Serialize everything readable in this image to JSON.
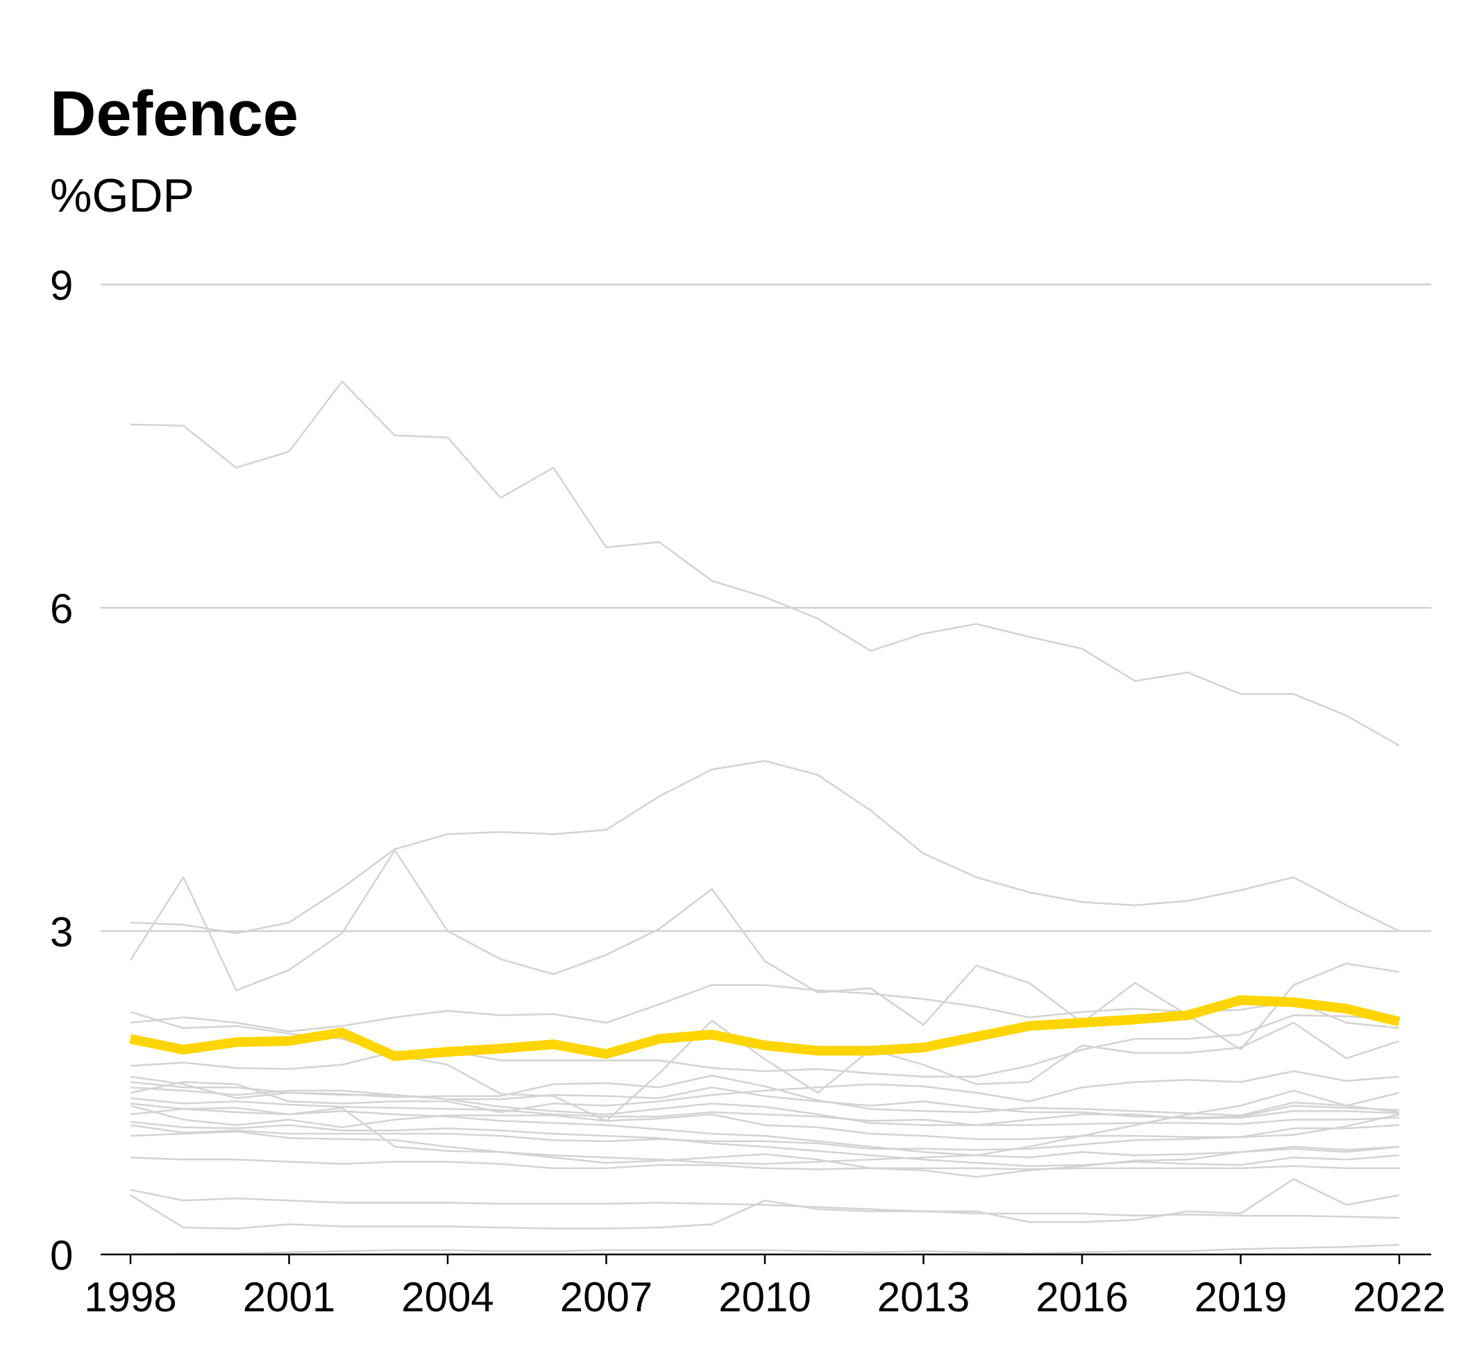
{
  "chart_data": {
    "type": "line",
    "title": "Defence",
    "ylabel": "%GDP",
    "xlabel": "",
    "ylim": [
      0,
      9
    ],
    "xlim": [
      1998,
      2022
    ],
    "yticks": [
      0,
      3,
      6,
      9
    ],
    "xticks": [
      1998,
      2001,
      2004,
      2007,
      2010,
      2013,
      2016,
      2019,
      2022
    ],
    "grid": true,
    "highlight_color": "#FFD500",
    "context_color": "#D3D3D3",
    "x": [
      1998,
      1999,
      2000,
      2001,
      2002,
      2003,
      2004,
      2005,
      2006,
      2007,
      2008,
      2009,
      2010,
      2011,
      2012,
      2013,
      2014,
      2015,
      2016,
      2017,
      2018,
      2019,
      2020,
      2021,
      2022
    ],
    "highlight": [
      2.0,
      1.9,
      1.97,
      1.98,
      2.06,
      1.84,
      1.88,
      1.91,
      1.95,
      1.86,
      2.0,
      2.04,
      1.94,
      1.89,
      1.89,
      1.92,
      2.02,
      2.12,
      2.15,
      2.18,
      2.22,
      2.36,
      2.34,
      2.28,
      2.16
    ],
    "series": [
      {
        "values": [
          7.7,
          7.69,
          7.3,
          7.45,
          8.1,
          7.6,
          7.58,
          7.02,
          7.3,
          6.56,
          6.61,
          6.25,
          6.1,
          5.9,
          5.6,
          5.76,
          5.85,
          5.73,
          5.62,
          5.32,
          5.4,
          5.2,
          5.2,
          5.0,
          4.72
        ]
      },
      {
        "values": [
          3.08,
          3.06,
          2.98,
          3.08,
          3.4,
          3.76,
          3.9,
          3.92,
          3.9,
          3.94,
          4.25,
          4.5,
          4.58,
          4.45,
          4.12,
          3.72,
          3.5,
          3.36,
          3.27,
          3.24,
          3.28,
          3.38,
          3.5,
          3.24,
          3.0
        ]
      },
      {
        "values": [
          2.73,
          3.5,
          2.45,
          2.64,
          2.98,
          3.75,
          3.0,
          2.74,
          2.6,
          2.78,
          3.02,
          3.39,
          2.72,
          2.43,
          2.47,
          2.13,
          2.68,
          2.52,
          2.15,
          2.52,
          2.22,
          1.9,
          2.5,
          2.7,
          2.62
        ]
      },
      {
        "values": [
          2.25,
          2.1,
          2.12,
          2.05,
          2.0,
          1.85,
          1.76,
          1.49,
          1.47,
          1.24,
          1.68,
          2.17,
          1.81,
          1.5,
          1.9,
          1.76,
          1.58,
          1.6,
          1.94,
          1.87,
          1.87,
          1.92,
          2.15,
          1.82,
          1.98
        ]
      },
      {
        "values": [
          2.15,
          2.2,
          2.15,
          2.07,
          2.12,
          2.2,
          2.26,
          2.22,
          2.23,
          2.15,
          2.32,
          2.5,
          2.5,
          2.45,
          2.42,
          2.37,
          2.3,
          2.2,
          2.25,
          2.28,
          2.25,
          2.27,
          2.35,
          2.15,
          2.1
        ]
      },
      {
        "values": [
          1.65,
          1.58,
          1.45,
          1.5,
          1.48,
          1.48,
          1.44,
          1.44,
          1.48,
          1.47,
          1.45,
          1.55,
          1.47,
          1.42,
          1.38,
          1.42,
          1.36,
          1.32,
          1.32,
          1.28,
          1.27,
          1.28,
          1.38,
          1.36,
          1.34
        ]
      },
      {
        "values": [
          1.55,
          1.52,
          1.48,
          1.52,
          1.52,
          1.48,
          1.44,
          1.37,
          1.33,
          1.3,
          1.35,
          1.4,
          1.37,
          1.3,
          1.22,
          1.2,
          1.2,
          1.25,
          1.3,
          1.3,
          1.26,
          1.27,
          1.33,
          1.33,
          1.31
        ]
      },
      {
        "values": [
          1.45,
          1.4,
          1.42,
          1.39,
          1.37,
          1.36,
          1.35,
          1.34,
          1.3,
          1.28,
          1.28,
          1.32,
          1.3,
          1.28,
          1.24,
          1.25,
          1.2,
          1.2,
          1.21,
          1.22,
          1.22,
          1.21,
          1.25,
          1.25,
          1.27
        ]
      },
      {
        "values": [
          1.2,
          1.13,
          1.15,
          1.12,
          1.12,
          1.12,
          1.12,
          1.1,
          1.06,
          1.05,
          1.07,
          1.05,
          1.05,
          1.03,
          0.98,
          0.98,
          0.97,
          0.98,
          1.02,
          1.06,
          1.07,
          1.09,
          1.17,
          1.17,
          1.2
        ]
      },
      {
        "values": [
          1.1,
          1.12,
          1.14,
          1.08,
          1.07,
          1.06,
          1.0,
          0.95,
          0.9,
          0.85,
          0.87,
          0.9,
          0.93,
          0.88,
          0.8,
          0.78,
          0.72,
          0.78,
          0.82,
          0.87,
          0.88,
          0.95,
          1.0,
          0.97,
          1.0
        ]
      },
      {
        "values": [
          1.38,
          1.25,
          1.2,
          1.25,
          1.18,
          1.25,
          1.29,
          1.29,
          1.29,
          1.24,
          1.26,
          1.3,
          1.2,
          1.18,
          1.12,
          1.1,
          1.07,
          1.07,
          1.1,
          1.1,
          1.09,
          1.09,
          1.11,
          1.19,
          1.3
        ]
      },
      {
        "values": [
          1.6,
          1.55,
          1.55,
          1.5,
          1.49,
          1.46,
          1.47,
          1.47,
          1.58,
          1.59,
          1.55,
          1.66,
          1.56,
          1.43,
          1.35,
          1.33,
          1.32,
          1.36,
          1.35,
          1.33,
          1.31,
          1.29,
          1.41,
          1.38,
          1.32
        ]
      },
      {
        "values": [
          0.9,
          0.88,
          0.88,
          0.86,
          0.84,
          0.86,
          0.86,
          0.84,
          0.8,
          0.8,
          0.83,
          0.83,
          0.8,
          0.79,
          0.8,
          0.8,
          0.8,
          0.79,
          0.8,
          0.8,
          0.8,
          0.8,
          0.82,
          0.8,
          0.8
        ]
      },
      {
        "values": [
          0.6,
          0.5,
          0.52,
          0.5,
          0.48,
          0.48,
          0.48,
          0.47,
          0.47,
          0.47,
          0.48,
          0.47,
          0.46,
          0.44,
          0.42,
          0.4,
          0.38,
          0.38,
          0.38,
          0.36,
          0.37,
          0.36,
          0.36,
          0.35,
          0.34
        ]
      },
      {
        "values": [
          0.55,
          0.25,
          0.24,
          0.28,
          0.26,
          0.26,
          0.26,
          0.25,
          0.24,
          0.24,
          0.25,
          0.28,
          0.5,
          0.42,
          0.4,
          0.4,
          0.4,
          0.3,
          0.3,
          0.32,
          0.4,
          0.38,
          0.7,
          0.46,
          0.55
        ]
      },
      {
        "values": [
          0.0,
          0.01,
          0.01,
          0.02,
          0.03,
          0.04,
          0.04,
          0.03,
          0.03,
          0.04,
          0.04,
          0.04,
          0.04,
          0.03,
          0.02,
          0.03,
          0.02,
          0.01,
          0.02,
          0.03,
          0.03,
          0.05,
          0.06,
          0.07,
          0.09
        ]
      },
      {
        "values": [
          1.75,
          1.78,
          1.73,
          1.72,
          1.76,
          1.88,
          1.89,
          1.8,
          1.8,
          1.8,
          1.8,
          1.73,
          1.7,
          1.72,
          1.68,
          1.65,
          1.65,
          1.75,
          1.9,
          2.0,
          2.0,
          2.04,
          2.22,
          2.21,
          2.18
        ]
      },
      {
        "values": [
          1.3,
          1.35,
          1.32,
          1.3,
          1.33,
          1.3,
          1.28,
          1.24,
          1.22,
          1.2,
          1.16,
          1.12,
          1.1,
          1.05,
          1.0,
          0.95,
          0.92,
          0.9,
          0.95,
          0.92,
          0.93,
          0.95,
          0.98,
          0.95,
          1.0
        ]
      },
      {
        "values": [
          1.23,
          1.18,
          1.17,
          1.2,
          1.15,
          1.15,
          1.17,
          1.15,
          1.12,
          1.1,
          1.08,
          1.03,
          1.0,
          0.96,
          0.92,
          0.88,
          0.85,
          0.82,
          0.83,
          0.86,
          0.84,
          0.83,
          0.9,
          0.88,
          0.92
        ]
      },
      {
        "values": [
          1.5,
          1.6,
          1.58,
          1.42,
          1.4,
          1.42,
          1.42,
          1.32,
          1.4,
          1.38,
          1.42,
          1.48,
          1.52,
          1.55,
          1.58,
          1.56,
          1.5,
          1.42,
          1.55,
          1.6,
          1.62,
          1.6,
          1.7,
          1.61,
          1.65
        ]
      },
      {
        "values": [
          1.4,
          1.35,
          1.36,
          1.3,
          1.36,
          1.0,
          0.96,
          0.95,
          0.92,
          0.9,
          0.88,
          0.85,
          0.84,
          0.86,
          0.88,
          0.9,
          0.92,
          1.0,
          1.1,
          1.2,
          1.3,
          1.38,
          1.52,
          1.38,
          1.5
        ]
      }
    ]
  }
}
